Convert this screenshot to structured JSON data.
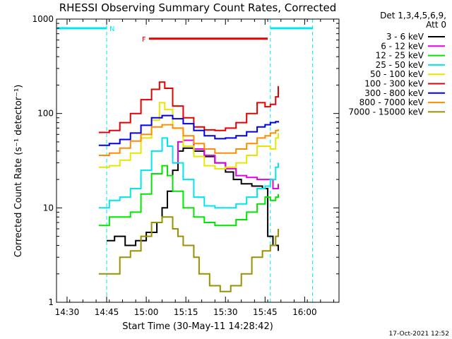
{
  "chart_data": {
    "type": "line",
    "title": "RHESSI Observing Summary Count Rates, Corrected",
    "xlabel": "Start Time (30-May-11 14:28:42)",
    "ylabel": "Corrected Count Rate (s⁻¹ detector⁻¹)",
    "yscale": "log",
    "ylim": [
      1,
      1000
    ],
    "xlim": [
      "14:26",
      "16:13"
    ],
    "x_ticks": [
      "14:30",
      "14:45",
      "15:00",
      "15:15",
      "15:30",
      "15:45",
      "16:00"
    ],
    "y_ticks": [
      "1",
      "10",
      "100",
      "1000"
    ],
    "grid": false,
    "legend_placement": "top-right",
    "legend_header": [
      "Det 1,3,4,5,6,9,",
      "Att 0"
    ],
    "timestamp": "17-Oct-2021 12:52",
    "annotations": [
      {
        "label": "N",
        "color": "#00e5ee",
        "note": "night intervals",
        "x_ranges": [
          [
            "14:26",
            "14:45"
          ],
          [
            "15:47",
            "16:03"
          ]
        ],
        "y": 800
      },
      {
        "label": "F",
        "color": "#e60000",
        "note": "flare flag",
        "x_ranges": [
          [
            "15:01",
            "15:46"
          ]
        ],
        "y": 620
      }
    ],
    "series": [
      {
        "name": "3 - 6 keV",
        "color": "#000000",
        "points": [
          [
            "14:45",
            4.5
          ],
          [
            "14:48",
            5
          ],
          [
            "14:52",
            4
          ],
          [
            "14:56",
            4.5
          ],
          [
            "15:00",
            5.5
          ],
          [
            "15:04",
            7
          ],
          [
            "15:06",
            10
          ],
          [
            "15:08",
            15
          ],
          [
            "15:10",
            25
          ],
          [
            "15:12",
            40
          ],
          [
            "15:14",
            43
          ],
          [
            "15:18",
            40
          ],
          [
            "15:22",
            35
          ],
          [
            "15:26",
            30
          ],
          [
            "15:30",
            24
          ],
          [
            "15:33",
            20
          ],
          [
            "15:36",
            18
          ],
          [
            "15:40",
            17
          ],
          [
            "15:44",
            16
          ],
          [
            "15:46",
            14
          ],
          [
            "15:46",
            5
          ],
          [
            "15:48",
            4
          ],
          [
            "15:50",
            3.5
          ]
        ]
      },
      {
        "name": "6 - 12 keV",
        "color": "#e600e6",
        "points": [
          [
            "15:10",
            30
          ],
          [
            "15:12",
            50
          ],
          [
            "15:14",
            52
          ],
          [
            "15:18",
            42
          ],
          [
            "15:22",
            36
          ],
          [
            "15:26",
            30
          ],
          [
            "15:30",
            26
          ],
          [
            "15:34",
            22
          ],
          [
            "15:38",
            21
          ],
          [
            "15:42",
            20
          ],
          [
            "15:46",
            20
          ],
          [
            "15:48",
            16
          ],
          [
            "15:50",
            18
          ]
        ]
      },
      {
        "name": "12 - 25 keV",
        "color": "#00e600",
        "points": [
          [
            "14:42",
            6.5
          ],
          [
            "14:46",
            8
          ],
          [
            "14:50",
            8
          ],
          [
            "14:54",
            9
          ],
          [
            "14:58",
            14
          ],
          [
            "15:02",
            23
          ],
          [
            "15:06",
            28
          ],
          [
            "15:08",
            22
          ],
          [
            "15:10",
            15
          ],
          [
            "15:14",
            10
          ],
          [
            "15:18",
            8
          ],
          [
            "15:22",
            7
          ],
          [
            "15:26",
            6.5
          ],
          [
            "15:30",
            6.5
          ],
          [
            "15:34",
            7.5
          ],
          [
            "15:38",
            9
          ],
          [
            "15:42",
            11
          ],
          [
            "15:45",
            13
          ],
          [
            "15:47",
            12
          ],
          [
            "15:49",
            13
          ],
          [
            "15:50",
            14
          ]
        ]
      },
      {
        "name": "25 - 50 keV",
        "color": "#00e5ee",
        "points": [
          [
            "14:42",
            10
          ],
          [
            "14:46",
            12
          ],
          [
            "14:50",
            13
          ],
          [
            "14:54",
            16
          ],
          [
            "14:58",
            25
          ],
          [
            "15:02",
            40
          ],
          [
            "15:06",
            55
          ],
          [
            "15:08",
            45
          ],
          [
            "15:10",
            30
          ],
          [
            "15:14",
            20
          ],
          [
            "15:18",
            13
          ],
          [
            "15:22",
            10.5
          ],
          [
            "15:26",
            10
          ],
          [
            "15:30",
            10
          ],
          [
            "15:34",
            11
          ],
          [
            "15:38",
            13
          ],
          [
            "15:42",
            16
          ],
          [
            "15:45",
            17
          ],
          [
            "15:47",
            20
          ],
          [
            "15:49",
            27
          ],
          [
            "15:50",
            30
          ]
        ]
      },
      {
        "name": "50 - 100 keV",
        "color": "#e6e600",
        "points": [
          [
            "14:42",
            27
          ],
          [
            "14:46",
            28
          ],
          [
            "14:50",
            32
          ],
          [
            "14:54",
            38
          ],
          [
            "14:58",
            55
          ],
          [
            "15:02",
            85
          ],
          [
            "15:05",
            130
          ],
          [
            "15:07",
            110
          ],
          [
            "15:10",
            70
          ],
          [
            "15:14",
            45
          ],
          [
            "15:18",
            35
          ],
          [
            "15:22",
            28
          ],
          [
            "15:26",
            26
          ],
          [
            "15:30",
            27
          ],
          [
            "15:34",
            30
          ],
          [
            "15:38",
            36
          ],
          [
            "15:42",
            45
          ],
          [
            "15:45",
            45
          ],
          [
            "15:47",
            42
          ],
          [
            "15:49",
            55
          ],
          [
            "15:50",
            62
          ]
        ]
      },
      {
        "name": "100 - 300 keV",
        "color": "#e60000",
        "points": [
          [
            "14:42",
            63
          ],
          [
            "14:46",
            66
          ],
          [
            "14:50",
            80
          ],
          [
            "14:54",
            100
          ],
          [
            "14:58",
            140
          ],
          [
            "15:02",
            180
          ],
          [
            "15:05",
            215
          ],
          [
            "15:07",
            185
          ],
          [
            "15:10",
            120
          ],
          [
            "15:14",
            90
          ],
          [
            "15:18",
            72
          ],
          [
            "15:22",
            67
          ],
          [
            "15:26",
            66
          ],
          [
            "15:30",
            70
          ],
          [
            "15:34",
            80
          ],
          [
            "15:38",
            100
          ],
          [
            "15:42",
            130
          ],
          [
            "15:45",
            118
          ],
          [
            "15:47",
            125
          ],
          [
            "15:49",
            150
          ],
          [
            "15:50",
            195
          ]
        ]
      },
      {
        "name": "300 - 800 keV",
        "color": "#0000e6",
        "points": [
          [
            "14:42",
            46
          ],
          [
            "14:46",
            48
          ],
          [
            "14:50",
            53
          ],
          [
            "14:54",
            62
          ],
          [
            "14:58",
            75
          ],
          [
            "15:02",
            90
          ],
          [
            "15:06",
            95
          ],
          [
            "15:10",
            88
          ],
          [
            "15:14",
            78
          ],
          [
            "15:18",
            66
          ],
          [
            "15:22",
            58
          ],
          [
            "15:26",
            54
          ],
          [
            "15:30",
            55
          ],
          [
            "15:34",
            58
          ],
          [
            "15:38",
            64
          ],
          [
            "15:42",
            72
          ],
          [
            "15:45",
            76
          ],
          [
            "15:47",
            80
          ],
          [
            "15:49",
            82
          ],
          [
            "15:50",
            80
          ]
        ]
      },
      {
        "name": "800 - 7000 keV",
        "color": "#ff8c00",
        "points": [
          [
            "14:42",
            36
          ],
          [
            "14:46",
            38
          ],
          [
            "14:50",
            43
          ],
          [
            "14:54",
            51
          ],
          [
            "14:58",
            60
          ],
          [
            "15:02",
            72
          ],
          [
            "15:06",
            76
          ],
          [
            "15:10",
            70
          ],
          [
            "15:14",
            58
          ],
          [
            "15:18",
            48
          ],
          [
            "15:22",
            42
          ],
          [
            "15:26",
            38
          ],
          [
            "15:30",
            38
          ],
          [
            "15:34",
            42
          ],
          [
            "15:38",
            48
          ],
          [
            "15:42",
            55
          ],
          [
            "15:45",
            58
          ],
          [
            "15:47",
            62
          ],
          [
            "15:49",
            66
          ],
          [
            "15:50",
            68
          ]
        ]
      },
      {
        "name": "7000 - 15000 keV",
        "color": "#9a9000",
        "points": [
          [
            "14:42",
            2
          ],
          [
            "14:46",
            2
          ],
          [
            "14:50",
            3
          ],
          [
            "14:54",
            3.5
          ],
          [
            "14:58",
            5
          ],
          [
            "15:02",
            7
          ],
          [
            "15:06",
            8
          ],
          [
            "15:10",
            6
          ],
          [
            "15:12",
            5
          ],
          [
            "15:14",
            4
          ],
          [
            "15:18",
            3
          ],
          [
            "15:20",
            2
          ],
          [
            "15:24",
            1.5
          ],
          [
            "15:28",
            1.3
          ],
          [
            "15:32",
            1.5
          ],
          [
            "15:36",
            2
          ],
          [
            "15:40",
            3
          ],
          [
            "15:44",
            3.5
          ],
          [
            "15:47",
            4
          ],
          [
            "15:49",
            5
          ],
          [
            "15:50",
            6
          ]
        ]
      }
    ]
  }
}
